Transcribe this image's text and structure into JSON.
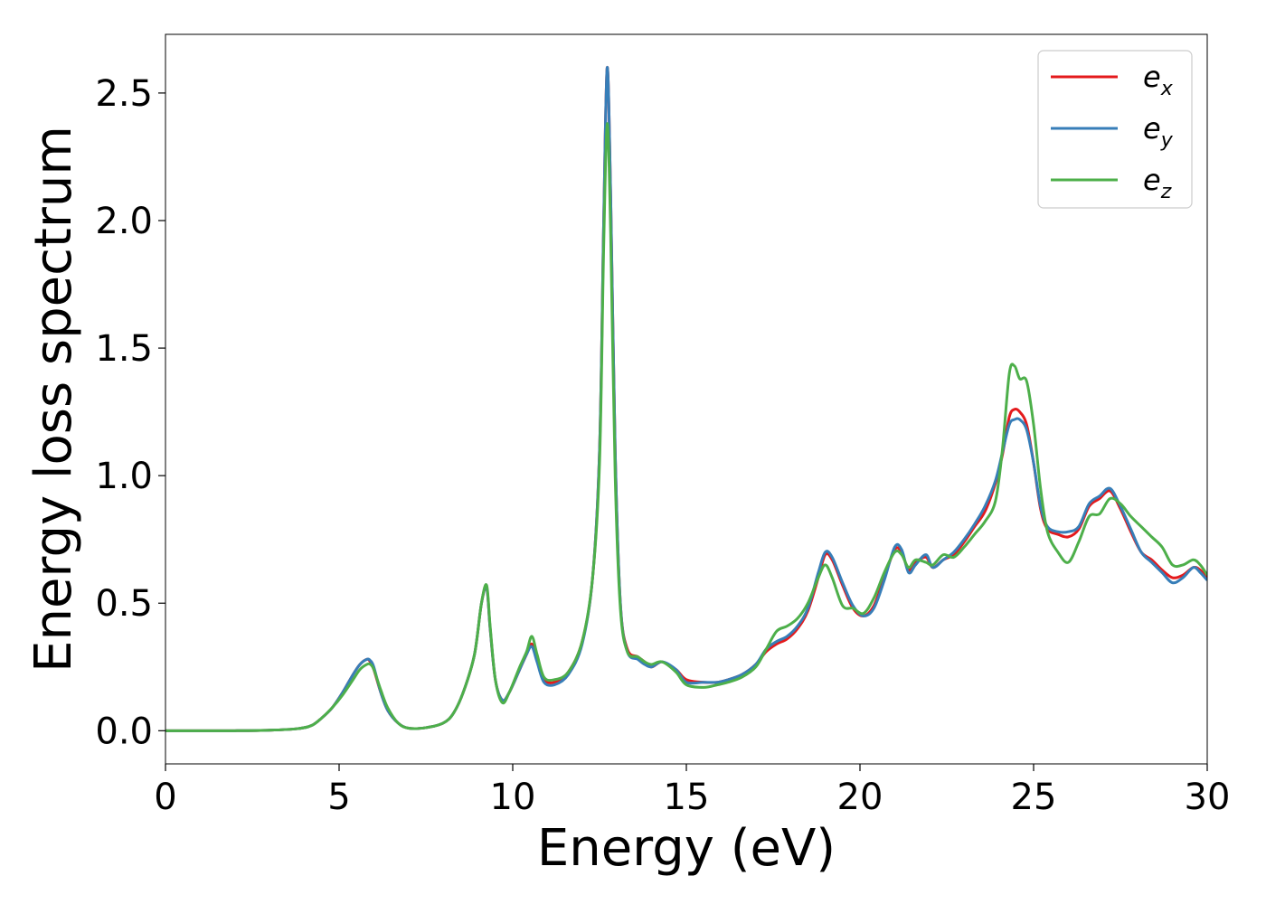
{
  "chart_data": {
    "type": "line",
    "xlabel": "Energy (eV)",
    "ylabel": "Energy loss spectrum",
    "xlim": [
      0,
      30
    ],
    "ylim": [
      -0.13,
      2.73
    ],
    "xticks": [
      0,
      5,
      10,
      15,
      20,
      25,
      30
    ],
    "xtick_labels": [
      "0",
      "5",
      "10",
      "15",
      "20",
      "25",
      "30"
    ],
    "yticks": [
      0.0,
      0.5,
      1.0,
      1.5,
      2.0,
      2.5
    ],
    "ytick_labels": [
      "0.0",
      "0.5",
      "1.0",
      "1.5",
      "2.0",
      "2.5"
    ],
    "grid": false,
    "legend_position": "top-right",
    "x": [
      0,
      1,
      2,
      3,
      3.8,
      4.2,
      4.5,
      4.8,
      5.1,
      5.4,
      5.6,
      5.8,
      5.9,
      6.0,
      6.2,
      6.4,
      6.7,
      7.0,
      7.5,
      8.0,
      8.3,
      8.6,
      8.9,
      9.1,
      9.25,
      9.35,
      9.5,
      9.7,
      9.9,
      10.2,
      10.4,
      10.55,
      10.7,
      10.9,
      11.2,
      11.6,
      12.0,
      12.3,
      12.5,
      12.62,
      12.72,
      12.82,
      12.95,
      13.1,
      13.3,
      13.6,
      13.8,
      14.0,
      14.3,
      14.7,
      15.0,
      15.5,
      15.9,
      16.2,
      16.6,
      17.0,
      17.3,
      17.6,
      17.9,
      18.2,
      18.5,
      18.8,
      19.0,
      19.2,
      19.5,
      19.8,
      20.1,
      20.4,
      20.7,
      21.0,
      21.2,
      21.4,
      21.6,
      21.9,
      22.1,
      22.4,
      22.7,
      23.0,
      23.3,
      23.6,
      23.9,
      24.1,
      24.3,
      24.45,
      24.6,
      24.8,
      25.0,
      25.2,
      25.4,
      25.7,
      26.0,
      26.3,
      26.6,
      26.9,
      27.2,
      27.5,
      27.8,
      28.1,
      28.4,
      28.7,
      29.0,
      29.3,
      29.6,
      29.8,
      30.0
    ],
    "series": [
      {
        "name": "e_x",
        "color": "#e41a1c",
        "values": [
          0.0,
          0.0,
          0.0,
          0.002,
          0.008,
          0.02,
          0.05,
          0.09,
          0.15,
          0.22,
          0.26,
          0.28,
          0.27,
          0.24,
          0.15,
          0.08,
          0.03,
          0.01,
          0.012,
          0.03,
          0.07,
          0.16,
          0.3,
          0.5,
          0.56,
          0.4,
          0.2,
          0.12,
          0.15,
          0.24,
          0.3,
          0.34,
          0.28,
          0.2,
          0.19,
          0.23,
          0.35,
          0.6,
          1.1,
          2.0,
          2.6,
          2.1,
          1.1,
          0.5,
          0.32,
          0.29,
          0.27,
          0.25,
          0.27,
          0.24,
          0.2,
          0.19,
          0.19,
          0.2,
          0.22,
          0.26,
          0.31,
          0.34,
          0.36,
          0.4,
          0.47,
          0.6,
          0.69,
          0.67,
          0.57,
          0.48,
          0.45,
          0.49,
          0.6,
          0.71,
          0.7,
          0.63,
          0.66,
          0.68,
          0.64,
          0.67,
          0.69,
          0.74,
          0.8,
          0.86,
          0.97,
          1.08,
          1.23,
          1.26,
          1.25,
          1.2,
          1.05,
          0.87,
          0.79,
          0.77,
          0.76,
          0.79,
          0.88,
          0.91,
          0.94,
          0.87,
          0.78,
          0.7,
          0.67,
          0.63,
          0.6,
          0.61,
          0.64,
          0.63,
          0.6
        ]
      },
      {
        "name": "e_y",
        "color": "#377eb8",
        "values": [
          0.0,
          0.0,
          0.0,
          0.002,
          0.008,
          0.02,
          0.05,
          0.09,
          0.15,
          0.22,
          0.26,
          0.28,
          0.275,
          0.25,
          0.15,
          0.08,
          0.03,
          0.01,
          0.012,
          0.03,
          0.07,
          0.16,
          0.3,
          0.5,
          0.56,
          0.4,
          0.2,
          0.12,
          0.15,
          0.24,
          0.3,
          0.33,
          0.27,
          0.19,
          0.18,
          0.22,
          0.34,
          0.6,
          1.1,
          2.0,
          2.6,
          2.1,
          1.1,
          0.5,
          0.31,
          0.28,
          0.26,
          0.25,
          0.27,
          0.24,
          0.19,
          0.19,
          0.19,
          0.2,
          0.22,
          0.26,
          0.32,
          0.35,
          0.37,
          0.41,
          0.48,
          0.62,
          0.7,
          0.68,
          0.58,
          0.49,
          0.45,
          0.48,
          0.59,
          0.72,
          0.71,
          0.62,
          0.65,
          0.69,
          0.64,
          0.67,
          0.7,
          0.75,
          0.81,
          0.88,
          0.98,
          1.09,
          1.2,
          1.22,
          1.22,
          1.18,
          1.05,
          0.88,
          0.8,
          0.78,
          0.78,
          0.8,
          0.89,
          0.92,
          0.95,
          0.88,
          0.79,
          0.7,
          0.66,
          0.62,
          0.58,
          0.6,
          0.64,
          0.62,
          0.59
        ]
      },
      {
        "name": "e_z",
        "color": "#4daf4a",
        "values": [
          0.0,
          0.0,
          0.0,
          0.002,
          0.008,
          0.02,
          0.05,
          0.09,
          0.14,
          0.2,
          0.24,
          0.26,
          0.26,
          0.24,
          0.16,
          0.09,
          0.03,
          0.01,
          0.012,
          0.03,
          0.07,
          0.16,
          0.3,
          0.5,
          0.57,
          0.41,
          0.2,
          0.11,
          0.15,
          0.25,
          0.31,
          0.37,
          0.3,
          0.21,
          0.2,
          0.23,
          0.35,
          0.6,
          1.05,
          1.9,
          2.38,
          1.95,
          1.0,
          0.48,
          0.31,
          0.29,
          0.27,
          0.26,
          0.27,
          0.23,
          0.18,
          0.17,
          0.18,
          0.19,
          0.21,
          0.25,
          0.32,
          0.39,
          0.41,
          0.44,
          0.5,
          0.6,
          0.65,
          0.6,
          0.49,
          0.48,
          0.46,
          0.52,
          0.62,
          0.7,
          0.69,
          0.64,
          0.67,
          0.66,
          0.65,
          0.69,
          0.68,
          0.72,
          0.77,
          0.82,
          0.9,
          1.1,
          1.4,
          1.43,
          1.38,
          1.37,
          1.2,
          0.95,
          0.78,
          0.7,
          0.66,
          0.74,
          0.84,
          0.85,
          0.91,
          0.89,
          0.84,
          0.8,
          0.76,
          0.72,
          0.65,
          0.65,
          0.67,
          0.65,
          0.61
        ]
      }
    ]
  }
}
